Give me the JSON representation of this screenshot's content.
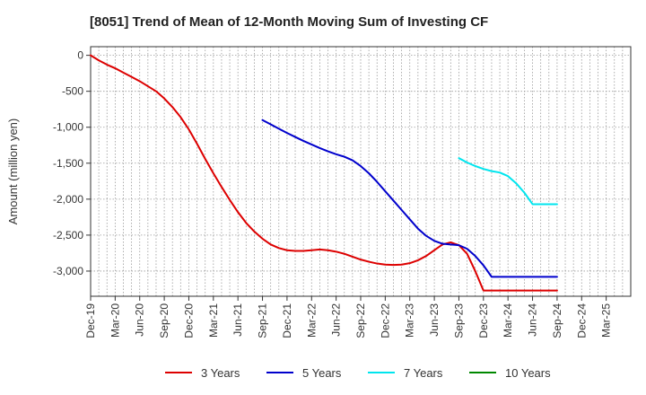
{
  "chart_data": {
    "type": "line",
    "title": "[8051]  Trend of Mean of 12-Month Moving Sum of Investing CF",
    "xlabel": "",
    "ylabel": "Amount (million yen)",
    "ylim": [
      -3350,
      120
    ],
    "yticks": [
      0,
      -500,
      -1000,
      -1500,
      -2000,
      -2500,
      -3000
    ],
    "ytick_labels": [
      "0",
      "-500",
      "-1,000",
      "-1,500",
      "-2,000",
      "-2,500",
      "-3,000"
    ],
    "xtick_labels": [
      "Dec-19",
      "Mar-20",
      "Jun-20",
      "Sep-20",
      "Dec-20",
      "Mar-21",
      "Jun-21",
      "Sep-21",
      "Dec-21",
      "Mar-22",
      "Jun-22",
      "Sep-22",
      "Dec-22",
      "Mar-23",
      "Jun-23",
      "Sep-23",
      "Dec-23",
      "Mar-24",
      "Jun-24",
      "Sep-24",
      "Dec-24",
      "Mar-25"
    ],
    "grid": true,
    "legend_position": "bottom",
    "series": [
      {
        "name": "3 Years",
        "color": "#dd0000",
        "x": [
          0,
          1,
          2,
          3,
          4,
          5,
          6,
          7,
          8,
          9,
          10,
          11,
          12,
          13,
          14,
          15,
          16,
          17,
          18,
          19,
          20,
          21,
          22,
          23,
          24,
          25,
          26,
          27,
          28,
          29,
          30,
          31,
          32,
          33,
          34,
          35,
          36,
          37,
          38,
          39,
          40,
          41,
          42,
          43,
          44,
          45,
          46,
          47,
          48,
          49,
          50,
          51,
          52,
          53,
          54,
          55,
          56,
          57
        ],
        "values": [
          0,
          -70,
          -130,
          -180,
          -240,
          -300,
          -360,
          -430,
          -500,
          -600,
          -720,
          -860,
          -1030,
          -1230,
          -1440,
          -1640,
          -1830,
          -2010,
          -2180,
          -2330,
          -2450,
          -2550,
          -2630,
          -2680,
          -2710,
          -2720,
          -2720,
          -2710,
          -2700,
          -2710,
          -2730,
          -2760,
          -2800,
          -2840,
          -2870,
          -2895,
          -2910,
          -2915,
          -2910,
          -2890,
          -2850,
          -2790,
          -2710,
          -2630,
          -2600,
          -2640,
          -2760,
          -3000,
          -3270,
          -3270,
          -3270,
          -3270,
          -3270,
          -3270,
          -3270,
          -3270,
          -3270,
          -3270
        ]
      },
      {
        "name": "5 Years",
        "color": "#0000cc",
        "x": [
          21,
          22,
          23,
          24,
          25,
          26,
          27,
          28,
          29,
          30,
          31,
          32,
          33,
          34,
          35,
          36,
          37,
          38,
          39,
          40,
          41,
          42,
          43,
          44,
          45,
          46,
          47,
          48,
          49,
          50,
          51,
          52,
          53,
          54,
          55,
          56,
          57
        ],
        "values": [
          -900,
          -960,
          -1020,
          -1080,
          -1135,
          -1190,
          -1240,
          -1290,
          -1335,
          -1375,
          -1410,
          -1460,
          -1540,
          -1640,
          -1760,
          -1890,
          -2020,
          -2150,
          -2280,
          -2410,
          -2510,
          -2580,
          -2620,
          -2630,
          -2640,
          -2690,
          -2790,
          -2920,
          -3080,
          -3080,
          -3080,
          -3080,
          -3080,
          -3080,
          -3080,
          -3080,
          -3080
        ]
      },
      {
        "name": "7 Years",
        "color": "#00e5ee",
        "x": [
          45,
          46,
          47,
          48,
          49,
          50,
          51,
          52,
          53,
          54,
          55,
          56,
          57
        ],
        "values": [
          -1430,
          -1490,
          -1540,
          -1580,
          -1610,
          -1630,
          -1680,
          -1780,
          -1910,
          -2070,
          -2070,
          -2070,
          -2070
        ]
      },
      {
        "name": "10 Years",
        "color": "#008800",
        "x": [],
        "values": []
      }
    ]
  }
}
